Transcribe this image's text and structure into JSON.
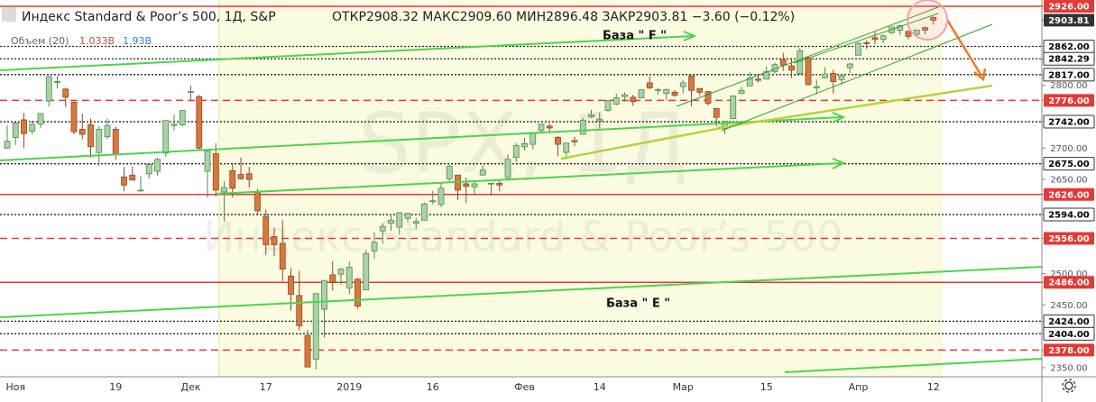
{
  "chart_data": {
    "type": "candlestick",
    "title": "Индекс Standard & Poor’s 500, 1Д, S&P",
    "ohlc_text": "ОТКР2908.32  МАКС2909.60  МИН2896.48  ЗАКР2903.81  −3.60 (−0.12%)",
    "volume_label": "Объем (20)",
    "volume_value_1": "1.033B",
    "volume_value_2": "1.93B",
    "watermark": "SPX, 1Д",
    "watermark_subtitle": "Индекс Standard & Poor’s 500",
    "annotations": [
      "База  \" F \"",
      "База  \" E \""
    ],
    "up_color": "#a9d3a4",
    "down_color": "#d9773f",
    "ylim": [
      2335.5,
      2936
    ],
    "yticks": [
      {
        "value": 2926,
        "label": "2926.00",
        "line": "red",
        "box": "red"
      },
      {
        "value": 2903.81,
        "label": "2903.81",
        "box": "dark"
      },
      {
        "value": 2862,
        "label": "2862.00",
        "line": "dotted",
        "box": "white"
      },
      {
        "value": 2842.29,
        "label": "2842.29",
        "line": "dotted",
        "box": "white"
      },
      {
        "value": 2817,
        "label": "2817.00",
        "line": "dotted",
        "box": "white"
      },
      {
        "value": 2800,
        "label": "2800.00"
      },
      {
        "value": 2776,
        "label": "2776.00",
        "line": "red-dashed",
        "box": "red"
      },
      {
        "value": 2742,
        "label": "2742.00",
        "line": "dotted",
        "box": "white"
      },
      {
        "value": 2700,
        "label": "2700.00"
      },
      {
        "value": 2675,
        "label": "2675.00",
        "line": "dotted",
        "box": "white"
      },
      {
        "value": 2650,
        "label": "2650.00"
      },
      {
        "value": 2626,
        "label": "2626.00",
        "line": "red",
        "box": "red"
      },
      {
        "value": 2594,
        "label": "2594.00",
        "line": "dotted",
        "box": "white"
      },
      {
        "value": 2556,
        "label": "2556.00",
        "line": "red-dashed",
        "box": "red"
      },
      {
        "value": 2500,
        "label": "2500.00"
      },
      {
        "value": 2486,
        "label": "2486.00",
        "line": "red",
        "box": "red"
      },
      {
        "value": 2450,
        "label": "2450.00"
      },
      {
        "value": 2424,
        "label": "2424.00",
        "line": "dotted",
        "box": "white"
      },
      {
        "value": 2404,
        "label": "2404.00",
        "line": "dotted",
        "box": "white"
      },
      {
        "value": 2378,
        "label": "2378.00",
        "line": "red-dashed",
        "box": "red"
      },
      {
        "value": 2350,
        "label": "2350.00"
      }
    ],
    "categories": [
      null,
      "Ноя",
      null,
      null,
      null,
      null,
      null,
      null,
      null,
      null,
      null,
      null,
      null,
      "19",
      null,
      null,
      null,
      null,
      null,
      null,
      null,
      null,
      "Дек",
      null,
      null,
      null,
      null,
      null,
      null,
      null,
      null,
      "17",
      null,
      null,
      null,
      null,
      null,
      null,
      null,
      null,
      null,
      "2019",
      null,
      null,
      null,
      null,
      null,
      null,
      null,
      null,
      null,
      "16",
      null,
      null,
      null,
      null,
      null,
      null,
      null,
      null,
      null,
      null,
      "Фев",
      null,
      null,
      null,
      null,
      null,
      null,
      null,
      null,
      "14",
      null,
      null,
      null,
      null,
      null,
      null,
      null,
      null,
      null,
      "Мар",
      null,
      null,
      null,
      null,
      null,
      null,
      null,
      null,
      null,
      "15",
      null,
      null,
      null,
      null,
      null,
      null,
      null,
      null,
      null,
      null,
      "Апр",
      null,
      null,
      null,
      null,
      null,
      null,
      null,
      null,
      "12"
    ],
    "candles": [
      [
        2700,
        2736,
        2699,
        2711
      ],
      [
        2717,
        2741,
        2705,
        2740
      ],
      [
        2745,
        2756,
        2700,
        2723
      ],
      [
        2727,
        2744,
        2722,
        2738
      ],
      [
        2738,
        2756,
        2732,
        2755
      ],
      [
        2775,
        2815,
        2766,
        2814
      ],
      [
        2806,
        2815,
        2795,
        2806
      ],
      [
        2794,
        2796,
        2765,
        2781
      ],
      [
        2773,
        2775,
        2722,
        2726
      ],
      [
        2730,
        2755,
        2714,
        2722
      ],
      [
        2737,
        2747,
        2685,
        2702
      ],
      [
        2693,
        2735,
        2671,
        2730
      ],
      [
        2718,
        2747,
        2714,
        2736
      ],
      [
        2730,
        2734,
        2681,
        2690
      ],
      [
        2654,
        2670,
        2631,
        2641
      ],
      [
        2657,
        2671,
        2649,
        2649
      ],
      [
        2633,
        2656,
        2631,
        2633
      ],
      [
        2659,
        2675,
        2651,
        2674
      ],
      [
        2663,
        2685,
        2656,
        2682
      ],
      [
        2692,
        2744,
        2686,
        2744
      ],
      [
        2736,
        2754,
        2728,
        2738
      ],
      [
        2737,
        2760,
        2735,
        2760
      ],
      [
        2790,
        2800,
        2774,
        2790
      ],
      [
        2782,
        2785,
        2697,
        2700
      ],
      [
        2663,
        2696,
        2621,
        2695
      ],
      [
        2691,
        2708,
        2623,
        2633
      ],
      [
        2630,
        2647,
        2583,
        2637
      ],
      [
        2664,
        2674,
        2621,
        2636
      ],
      [
        2658,
        2685,
        2650,
        2651
      ],
      [
        2659,
        2670,
        2637,
        2650
      ],
      [
        2629,
        2635,
        2593,
        2600
      ],
      [
        2591,
        2602,
        2530,
        2546
      ],
      [
        2559,
        2573,
        2528,
        2546
      ],
      [
        2548,
        2585,
        2488,
        2507
      ],
      [
        2496,
        2509,
        2441,
        2467
      ],
      [
        2465,
        2504,
        2409,
        2417
      ],
      [
        2401,
        2410,
        2351,
        2351
      ],
      [
        2363,
        2468,
        2347,
        2468
      ],
      [
        2443,
        2489,
        2398,
        2489
      ],
      [
        2498,
        2520,
        2473,
        2486
      ],
      [
        2499,
        2509,
        2482,
        2507
      ],
      [
        2477,
        2519,
        2467,
        2510
      ],
      [
        2491,
        2493,
        2444,
        2448
      ],
      [
        2474,
        2538,
        2474,
        2532
      ],
      [
        2536,
        2566,
        2524,
        2550
      ],
      [
        2568,
        2580,
        2547,
        2575
      ],
      [
        2580,
        2595,
        2568,
        2585
      ],
      [
        2574,
        2598,
        2562,
        2597
      ],
      [
        2588,
        2597,
        2582,
        2596
      ],
      [
        2580,
        2589,
        2571,
        2583
      ],
      [
        2585,
        2613,
        2585,
        2611
      ],
      [
        2615,
        2632,
        2610,
        2616
      ],
      [
        2610,
        2645,
        2606,
        2636
      ],
      [
        2651,
        2675,
        2647,
        2671
      ],
      [
        2657,
        2657,
        2617,
        2633
      ],
      [
        2643,
        2653,
        2612,
        2639
      ],
      [
        2638,
        2647,
        2627,
        2643
      ],
      [
        2657,
        2673,
        2657,
        2665
      ],
      [
        2644,
        2644,
        2624,
        2644
      ],
      [
        2644,
        2650,
        2631,
        2641
      ],
      [
        2653,
        2690,
        2648,
        2682
      ],
      [
        2685,
        2708,
        2678,
        2704
      ],
      [
        2702,
        2716,
        2696,
        2707
      ],
      [
        2706,
        2724,
        2698,
        2725
      ],
      [
        2728,
        2738,
        2724,
        2738
      ],
      [
        2735,
        2739,
        2726,
        2732
      ],
      [
        2717,
        2719,
        2687,
        2706
      ],
      [
        2693,
        2708,
        2682,
        2708
      ],
      [
        2712,
        2718,
        2703,
        2710
      ],
      [
        2722,
        2748,
        2722,
        2744
      ],
      [
        2750,
        2761,
        2748,
        2753
      ],
      [
        2743,
        2757,
        2731,
        2746
      ],
      [
        2760,
        2776,
        2758,
        2776
      ],
      [
        2770,
        2787,
        2768,
        2780
      ],
      [
        2782,
        2789,
        2774,
        2785
      ],
      [
        2781,
        2785,
        2767,
        2774
      ],
      [
        2780,
        2793,
        2780,
        2793
      ],
      [
        2804,
        2814,
        2794,
        2796
      ],
      [
        2792,
        2796,
        2785,
        2793
      ],
      [
        2787,
        2795,
        2776,
        2793
      ],
      [
        2789,
        2792,
        2782,
        2784
      ],
      [
        2798,
        2808,
        2787,
        2804
      ],
      [
        2815,
        2816,
        2767,
        2792
      ],
      [
        2795,
        2795,
        2784,
        2789
      ],
      [
        2790,
        2791,
        2768,
        2771
      ],
      [
        2763,
        2763,
        2735,
        2749
      ],
      [
        2731,
        2743,
        2722,
        2743
      ],
      [
        2747,
        2784,
        2747,
        2783
      ],
      [
        2787,
        2798,
        2786,
        2792
      ],
      [
        2799,
        2821,
        2799,
        2811
      ],
      [
        2810,
        2816,
        2804,
        2808
      ],
      [
        2810,
        2830,
        2810,
        2822
      ],
      [
        2822,
        2836,
        2819,
        2833
      ],
      [
        2841,
        2852,
        2823,
        2832
      ],
      [
        2831,
        2843,
        2812,
        2824
      ],
      [
        2819,
        2860,
        2817,
        2855
      ],
      [
        2844,
        2846,
        2800,
        2801
      ],
      [
        2796,
        2809,
        2786,
        2798
      ],
      [
        2812,
        2829,
        2811,
        2818
      ],
      [
        2819,
        2825,
        2787,
        2806
      ],
      [
        2809,
        2819,
        2801,
        2815
      ],
      [
        2828,
        2836,
        2819,
        2834
      ],
      [
        2848,
        2869,
        2848,
        2867
      ],
      [
        2868,
        2872,
        2858,
        2867
      ],
      [
        2876,
        2885,
        2865,
        2873
      ],
      [
        2873,
        2881,
        2867,
        2879
      ],
      [
        2884,
        2893,
        2882,
        2893
      ],
      [
        2888,
        2896,
        2880,
        2895
      ],
      [
        2886,
        2886,
        2873,
        2878
      ],
      [
        2881,
        2889,
        2879,
        2888
      ],
      [
        2892,
        2893,
        2881,
        2888
      ],
      [
        2908.32,
        2909.6,
        2896.48,
        2903.81
      ]
    ]
  }
}
